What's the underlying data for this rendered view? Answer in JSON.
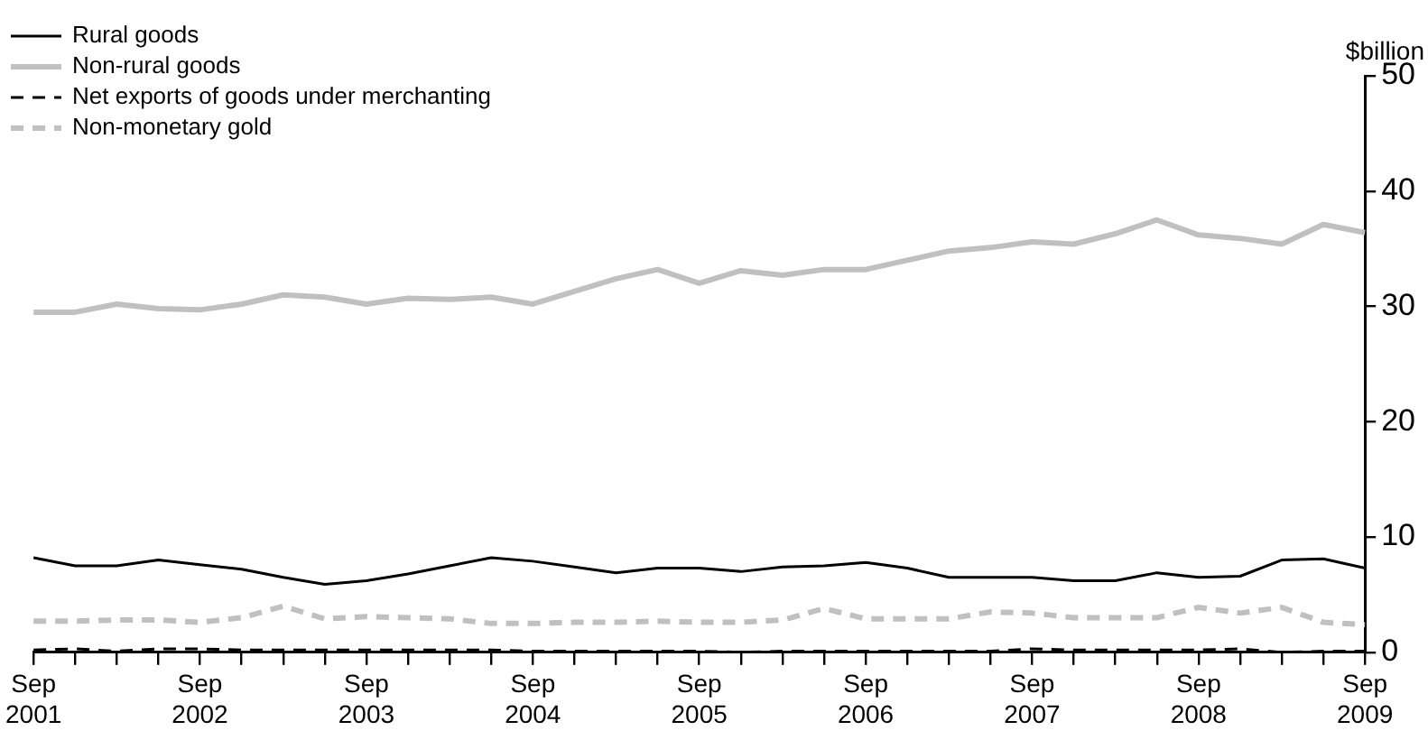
{
  "chart_data": {
    "type": "line",
    "ylabel": "$billion",
    "categories": [
      "Sep 2001",
      null,
      null,
      null,
      "Sep 2002",
      null,
      null,
      null,
      "Sep 2003",
      null,
      null,
      null,
      "Sep 2004",
      null,
      null,
      null,
      "Sep 2005",
      null,
      null,
      null,
      "Sep 2006",
      null,
      null,
      null,
      "Sep 2007",
      null,
      null,
      null,
      "Sep 2008",
      null,
      null,
      null,
      "Sep 2009"
    ],
    "series": [
      {
        "name": "Rural goods",
        "color": "#000000",
        "line_style": "solid",
        "values": [
          8.2,
          7.5,
          7.5,
          8.0,
          7.6,
          7.2,
          6.5,
          5.9,
          6.2,
          6.8,
          7.5,
          8.2,
          7.9,
          7.4,
          6.9,
          7.3,
          7.3,
          7.0,
          7.4,
          7.5,
          7.8,
          7.3,
          6.5,
          6.5,
          6.5,
          6.2,
          6.2,
          6.9,
          6.5,
          6.6,
          8.0,
          8.1,
          7.3
        ]
      },
      {
        "name": "Non-rural goods",
        "color": "#c0c0c0",
        "line_style": "solid",
        "values": [
          29.5,
          29.5,
          30.2,
          29.8,
          29.7,
          30.2,
          31.0,
          30.8,
          30.2,
          30.7,
          30.6,
          30.8,
          30.2,
          31.3,
          32.4,
          33.2,
          32.0,
          33.1,
          32.7,
          33.2,
          33.2,
          34.0,
          34.8,
          35.1,
          35.6,
          35.4,
          36.3,
          37.5,
          36.2,
          35.9,
          35.4,
          37.1,
          36.4
        ]
      },
      {
        "name": "Net exports of goods under merchanting",
        "color": "#000000",
        "line_style": "dashed",
        "values": [
          0.2,
          0.3,
          0.1,
          0.3,
          0.3,
          0.2,
          0.2,
          0.2,
          0.2,
          0.2,
          0.2,
          0.2,
          0.1,
          0.1,
          0.1,
          0.1,
          0.1,
          0.0,
          0.1,
          0.1,
          0.1,
          0.1,
          0.1,
          0.1,
          0.3,
          0.2,
          0.2,
          0.2,
          0.2,
          0.3,
          0.0,
          0.1,
          0.1
        ]
      },
      {
        "name": "Non-monetary gold",
        "color": "#c0c0c0",
        "line_style": "dashed",
        "values": [
          2.7,
          2.7,
          2.8,
          2.8,
          2.6,
          3.0,
          4.0,
          2.9,
          3.1,
          3.0,
          2.9,
          2.5,
          2.5,
          2.6,
          2.6,
          2.7,
          2.6,
          2.6,
          2.8,
          3.8,
          2.9,
          2.9,
          2.9,
          3.5,
          3.4,
          3.0,
          3.0,
          3.0,
          3.9,
          3.4,
          3.9,
          2.6,
          2.4
        ]
      }
    ],
    "ylim": [
      0,
      50
    ],
    "yticks": [
      0,
      10,
      20,
      30,
      40,
      50
    ],
    "grid": false,
    "legend": "top left",
    "marker": "none"
  }
}
